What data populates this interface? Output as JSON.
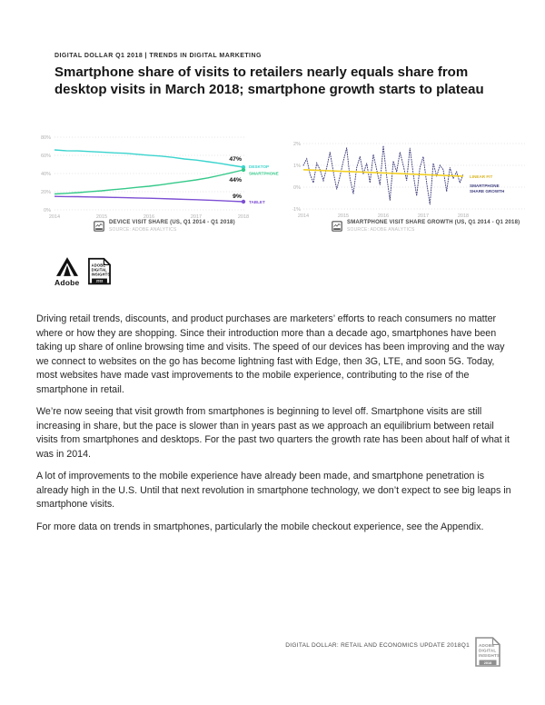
{
  "header": {
    "eyebrow": "DIGITAL DOLLAR Q1 2018 | TRENDS IN DIGITAL MARKETING",
    "title": "Smartphone share of visits to retailers nearly equals share from desktop visits in March 2018; smartphone growth starts to plateau"
  },
  "logo": {
    "adobe_label": "Adobe",
    "badge_lines": [
      "ADOBE",
      "DIGITAL",
      "INSIGHTS"
    ],
    "badge_year": "2018"
  },
  "body": {
    "paragraphs": [
      "Driving retail trends, discounts, and product purchases are marketers’ efforts to reach consumers no matter where or how they are shopping. Since their introduction more than a decade ago, smartphones have been taking up share of online browsing time and visits. The speed of our devices has been improving and the way we connect to websites on the go has become lightning fast with Edge, then 3G, LTE, and soon 5G. Today, most websites have made vast improvements to the mobile experience, contributing to the rise of the smartphone in retail.",
      "We’re now seeing that visit growth from smartphones is beginning to level off. Smartphone visits are still increasing in share, but the pace is slower than in years past as we approach an equilibrium between retail visits from smartphones and desktops. For the past two quarters the growth rate has been about half of what it was in 2014.",
      "A lot of improvements to the mobile experience have already been made, and smartphone penetration is already high in the U.S. Until that next revolution in smartphone technology, we don’t expect to see big leaps in smartphone visits.",
      "For more data on trends in smartphones, particularly the mobile checkout experience,  see the Appendix."
    ]
  },
  "footer": {
    "text": "DIGITAL DOLLAR: RETAIL AND ECONOMICS UPDATE  2018Q1",
    "badge_lines": [
      "ADOBE",
      "DIGITAL",
      "INSIGHTS"
    ],
    "badge_year": "2018"
  },
  "colors": {
    "desktop": "#3BD4CE",
    "smartphone": "#35C98A",
    "tablet": "#7D4FD3",
    "growth": "#3E3E7E",
    "linear_fit": "#F2D024",
    "grid": "#dcdcdc",
    "tick_text": "#b0b0b0"
  },
  "chart_data": [
    {
      "type": "line",
      "title": "DEVICE VISIT SHARE (US, Q1 2014 - Q1 2018)",
      "source": "SOURCE: ADOBE ANALYTICS",
      "x_ticks": [
        "2014",
        "2015",
        "2016",
        "2017",
        "2018"
      ],
      "y_ticks": [
        {
          "label": "80%",
          "value": 80
        },
        {
          "label": "60%",
          "value": 60
        },
        {
          "label": "40%",
          "value": 40
        },
        {
          "label": "20%",
          "value": 20
        },
        {
          "label": "0%",
          "value": 0
        }
      ],
      "ylim": [
        0,
        80
      ],
      "x_unit": "quarterly, Q1 2014 - Q1 2018",
      "series": [
        {
          "name": "DESKTOP",
          "color": "#3BD4CE",
          "end_label": "47%",
          "values": [
            66,
            65.1,
            64.9,
            64.2,
            63.6,
            62.8,
            62.3,
            61.2,
            60.1,
            59.2,
            57.8,
            56,
            54.8,
            53,
            51.2,
            49,
            47
          ]
        },
        {
          "name": "SMARTPHONE",
          "color": "#35C98A",
          "end_label": "44%",
          "values": [
            17.5,
            18.2,
            19,
            20.1,
            21,
            22.3,
            23.4,
            24.8,
            26,
            27.6,
            29.4,
            31.2,
            33,
            35.2,
            38,
            41,
            44
          ]
        },
        {
          "name": "TABLET",
          "color": "#7D4FD3",
          "end_label": "9%",
          "values": [
            14.8,
            14.6,
            14.5,
            14.2,
            14,
            13.7,
            13.4,
            13.1,
            12.8,
            12.4,
            12,
            11.6,
            11.2,
            10.7,
            10.2,
            9.6,
            9
          ]
        }
      ]
    },
    {
      "type": "line",
      "title": "SMARTPHONE VISIT SHARE GROWTH (US, Q1 2014 - Q1 2018)",
      "source": "SOURCE: ADOBE ANALYTICS",
      "x_ticks": [
        "2014",
        "2015",
        "2016",
        "2017",
        "2018"
      ],
      "y_ticks": [
        {
          "label": "2%",
          "value": 2
        },
        {
          "label": "1%",
          "value": 1
        },
        {
          "label": "0%",
          "value": 0
        },
        {
          "label": "-1%",
          "value": -1
        }
      ],
      "ylim": [
        -1,
        2
      ],
      "x_unit": "monthly, 2014 - 2018",
      "series": [
        {
          "name": "SMARTPHONE SHARE GROWTH",
          "name_lines": [
            "SMARTPHONE",
            "SHARE GROWTH"
          ],
          "style": "dotted",
          "color": "#3E3E7E",
          "values": [
            1.0,
            1.3,
            0.6,
            0.2,
            1.1,
            0.8,
            0.3,
            0.9,
            1.6,
            0.7,
            -0.1,
            0.5,
            1.2,
            1.8,
            0.4,
            -0.3,
            0.9,
            1.4,
            0.6,
            1.1,
            0.2,
            1.5,
            0.8,
            0.1,
            1.9,
            0.5,
            -0.6,
            1.2,
            0.7,
            1.6,
            1.0,
            0.3,
            1.8,
            0.6,
            -0.4,
            0.9,
            1.4,
            0.2,
            -0.8,
            1.1,
            0.5,
            1.0,
            0.8,
            -0.2,
            0.9,
            0.4,
            0.7,
            0.2,
            0.6
          ]
        },
        {
          "name": "LINEAR FIT",
          "style": "solid",
          "color": "#F2D024",
          "values": [
            0.8,
            0.5
          ]
        }
      ]
    }
  ]
}
